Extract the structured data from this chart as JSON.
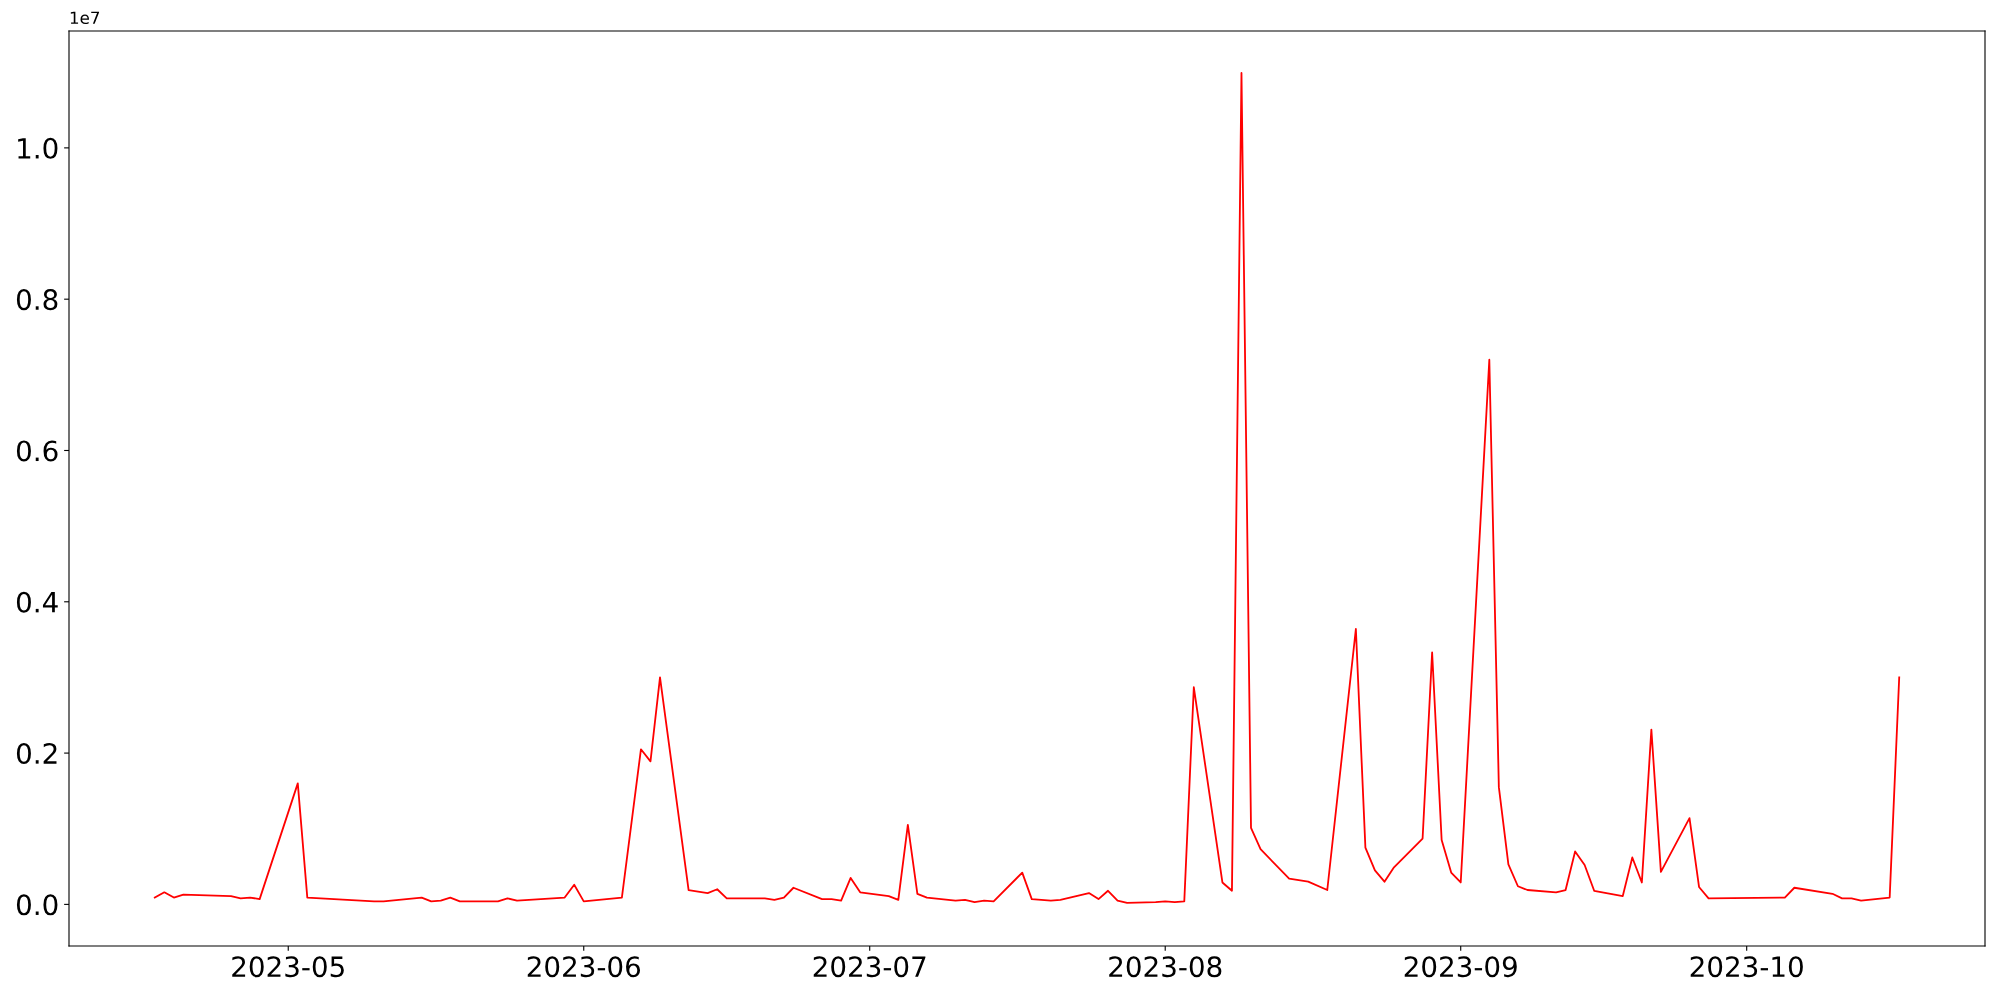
{
  "chart_data": {
    "type": "line",
    "x": [
      "2023-04-17",
      "2023-04-18",
      "2023-04-19",
      "2023-04-20",
      "2023-04-25",
      "2023-04-26",
      "2023-04-27",
      "2023-04-28",
      "2023-05-02",
      "2023-05-03",
      "2023-05-10",
      "2023-05-11",
      "2023-05-15",
      "2023-05-16",
      "2023-05-17",
      "2023-05-18",
      "2023-05-19",
      "2023-05-23",
      "2023-05-24",
      "2023-05-25",
      "2023-05-30",
      "2023-05-31",
      "2023-06-01",
      "2023-06-05",
      "2023-06-07",
      "2023-06-08",
      "2023-06-09",
      "2023-06-12",
      "2023-06-14",
      "2023-06-15",
      "2023-06-16",
      "2023-06-20",
      "2023-06-21",
      "2023-06-22",
      "2023-06-23",
      "2023-06-26",
      "2023-06-27",
      "2023-06-28",
      "2023-06-29",
      "2023-06-30",
      "2023-07-03",
      "2023-07-04",
      "2023-07-05",
      "2023-07-06",
      "2023-07-07",
      "2023-07-10",
      "2023-07-11",
      "2023-07-12",
      "2023-07-13",
      "2023-07-14",
      "2023-07-17",
      "2023-07-18",
      "2023-07-20",
      "2023-07-21",
      "2023-07-24",
      "2023-07-25",
      "2023-07-26",
      "2023-07-27",
      "2023-07-28",
      "2023-07-31",
      "2023-08-01",
      "2023-08-02",
      "2023-08-03",
      "2023-08-04",
      "2023-08-07",
      "2023-08-08",
      "2023-08-09",
      "2023-08-10",
      "2023-08-11",
      "2023-08-14",
      "2023-08-16",
      "2023-08-18",
      "2023-08-21",
      "2023-08-22",
      "2023-08-23",
      "2023-08-24",
      "2023-08-25",
      "2023-08-28",
      "2023-08-29",
      "2023-08-30",
      "2023-08-31",
      "2023-09-01",
      "2023-09-04",
      "2023-09-05",
      "2023-09-06",
      "2023-09-07",
      "2023-09-08",
      "2023-09-11",
      "2023-09-12",
      "2023-09-13",
      "2023-09-14",
      "2023-09-15",
      "2023-09-18",
      "2023-09-19",
      "2023-09-20",
      "2023-09-21",
      "2023-09-22",
      "2023-09-25",
      "2023-09-26",
      "2023-09-27",
      "2023-10-05",
      "2023-10-06",
      "2023-10-10",
      "2023-10-11",
      "2023-10-12",
      "2023-10-13",
      "2023-10-16",
      "2023-10-17"
    ],
    "series": [
      {
        "color": "#ff0000",
        "values": [
          0.009,
          0.016,
          0.009,
          0.013,
          0.011,
          0.008,
          0.009,
          0.007,
          0.16,
          0.009,
          0.004,
          0.004,
          0.009,
          0.004,
          0.005,
          0.009,
          0.004,
          0.004,
          0.008,
          0.005,
          0.009,
          0.026,
          0.004,
          0.009,
          0.205,
          0.189,
          0.3,
          0.019,
          0.015,
          0.02,
          0.008,
          0.008,
          0.006,
          0.009,
          0.022,
          0.007,
          0.007,
          0.005,
          0.035,
          0.016,
          0.011,
          0.006,
          0.105,
          0.014,
          0.009,
          0.005,
          0.006,
          0.003,
          0.005,
          0.004,
          0.042,
          0.007,
          0.005,
          0.006,
          0.015,
          0.007,
          0.018,
          0.005,
          0.002,
          0.003,
          0.004,
          0.003,
          0.004,
          0.287,
          0.029,
          0.018,
          1.099,
          0.101,
          0.073,
          0.034,
          0.03,
          0.019,
          0.364,
          0.075,
          0.045,
          0.03,
          0.049,
          0.087,
          0.333,
          0.085,
          0.042,
          0.029,
          0.72,
          0.155,
          0.053,
          0.024,
          0.019,
          0.016,
          0.019,
          0.07,
          0.052,
          0.018,
          0.011,
          0.062,
          0.029,
          0.231,
          0.043,
          0.114,
          0.023,
          0.008,
          0.009,
          0.022,
          0.014,
          0.008,
          0.008,
          0.005,
          0.009,
          0.3
        ]
      }
    ],
    "xlim": [
      "2023-04-08",
      "2023-10-26"
    ],
    "xticks": [
      {
        "value": "2023-05-01",
        "label": "2023-05"
      },
      {
        "value": "2023-06-01",
        "label": "2023-06"
      },
      {
        "value": "2023-07-01",
        "label": "2023-07"
      },
      {
        "value": "2023-08-01",
        "label": "2023-08"
      },
      {
        "value": "2023-09-01",
        "label": "2023-09"
      },
      {
        "value": "2023-10-01",
        "label": "2023-10"
      }
    ],
    "ylim": [
      -0.055,
      1.1545
    ],
    "yticks": [
      {
        "value": 0,
        "label": "0.0"
      },
      0.2,
      0.4,
      0.6,
      0.8,
      {
        "value": 1,
        "label": "1.0"
      }
    ],
    "annotations": [
      "1e7"
    ],
    "marker": "none",
    "line_style": "solid"
  }
}
